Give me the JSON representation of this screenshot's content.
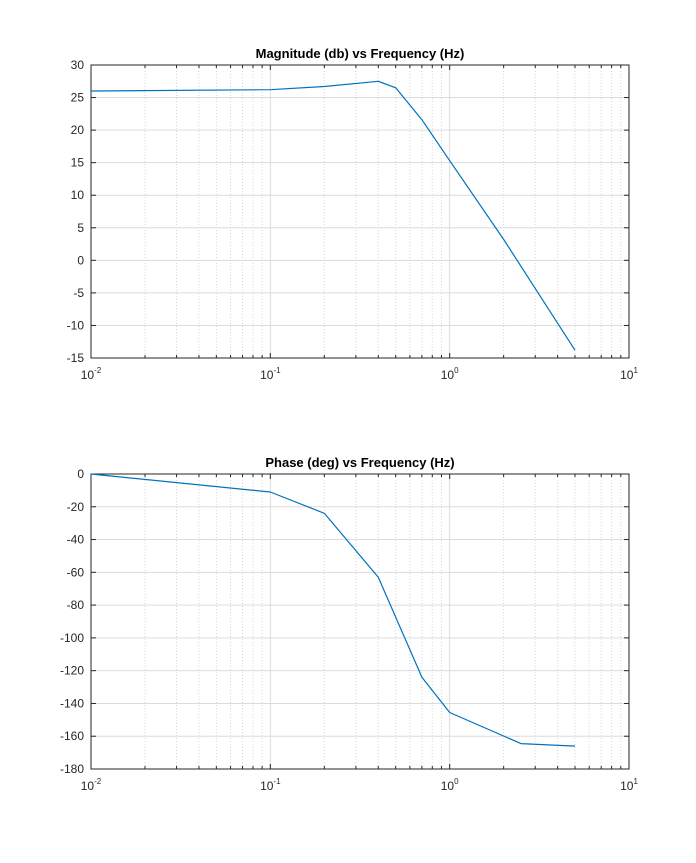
{
  "chart_data": [
    {
      "type": "line",
      "title": "Magnitude (db) vs Frequency (Hz)",
      "xlabel": "",
      "ylabel": "",
      "xscale": "log",
      "xlim": [
        0.01,
        10
      ],
      "ylim": [
        -15,
        30
      ],
      "grid": "major and minor",
      "x_ticks": [
        {
          "base": "10",
          "exp": "-2",
          "value": 0.01
        },
        {
          "base": "10",
          "exp": "-1",
          "value": 0.1
        },
        {
          "base": "10",
          "exp": "0",
          "value": 1
        },
        {
          "base": "10",
          "exp": "1",
          "value": 10
        }
      ],
      "y_ticks": [
        30,
        25,
        20,
        15,
        10,
        5,
        0,
        -5,
        -10,
        -15
      ],
      "line_color": "#0072BD",
      "series": [
        {
          "x": [
            0.01,
            0.1,
            0.2,
            0.4,
            0.5,
            0.7,
            1,
            2,
            5
          ],
          "y": [
            26,
            26.2,
            26.7,
            27.5,
            26.5,
            21.6,
            15.3,
            3.2,
            -13.8
          ]
        }
      ]
    },
    {
      "type": "line",
      "title": "Phase (deg) vs Frequency (Hz)",
      "xlabel": "",
      "ylabel": "",
      "xscale": "log",
      "xlim": [
        0.01,
        10
      ],
      "ylim": [
        -180,
        0
      ],
      "grid": "major and minor",
      "x_ticks": [
        {
          "base": "10",
          "exp": "-2",
          "value": 0.01
        },
        {
          "base": "10",
          "exp": "-1",
          "value": 0.1
        },
        {
          "base": "10",
          "exp": "0",
          "value": 1
        },
        {
          "base": "10",
          "exp": "1",
          "value": 10
        }
      ],
      "y_ticks": [
        0,
        -20,
        -40,
        -60,
        -80,
        -100,
        -120,
        -140,
        -160,
        -180
      ],
      "line_color": "#0072BD",
      "series": [
        {
          "x": [
            0.01,
            0.1,
            0.2,
            0.4,
            0.7,
            1,
            2.5,
            5
          ],
          "y": [
            0,
            -11,
            -24,
            -63,
            -124,
            -145.5,
            -164.5,
            -166
          ]
        }
      ]
    }
  ]
}
